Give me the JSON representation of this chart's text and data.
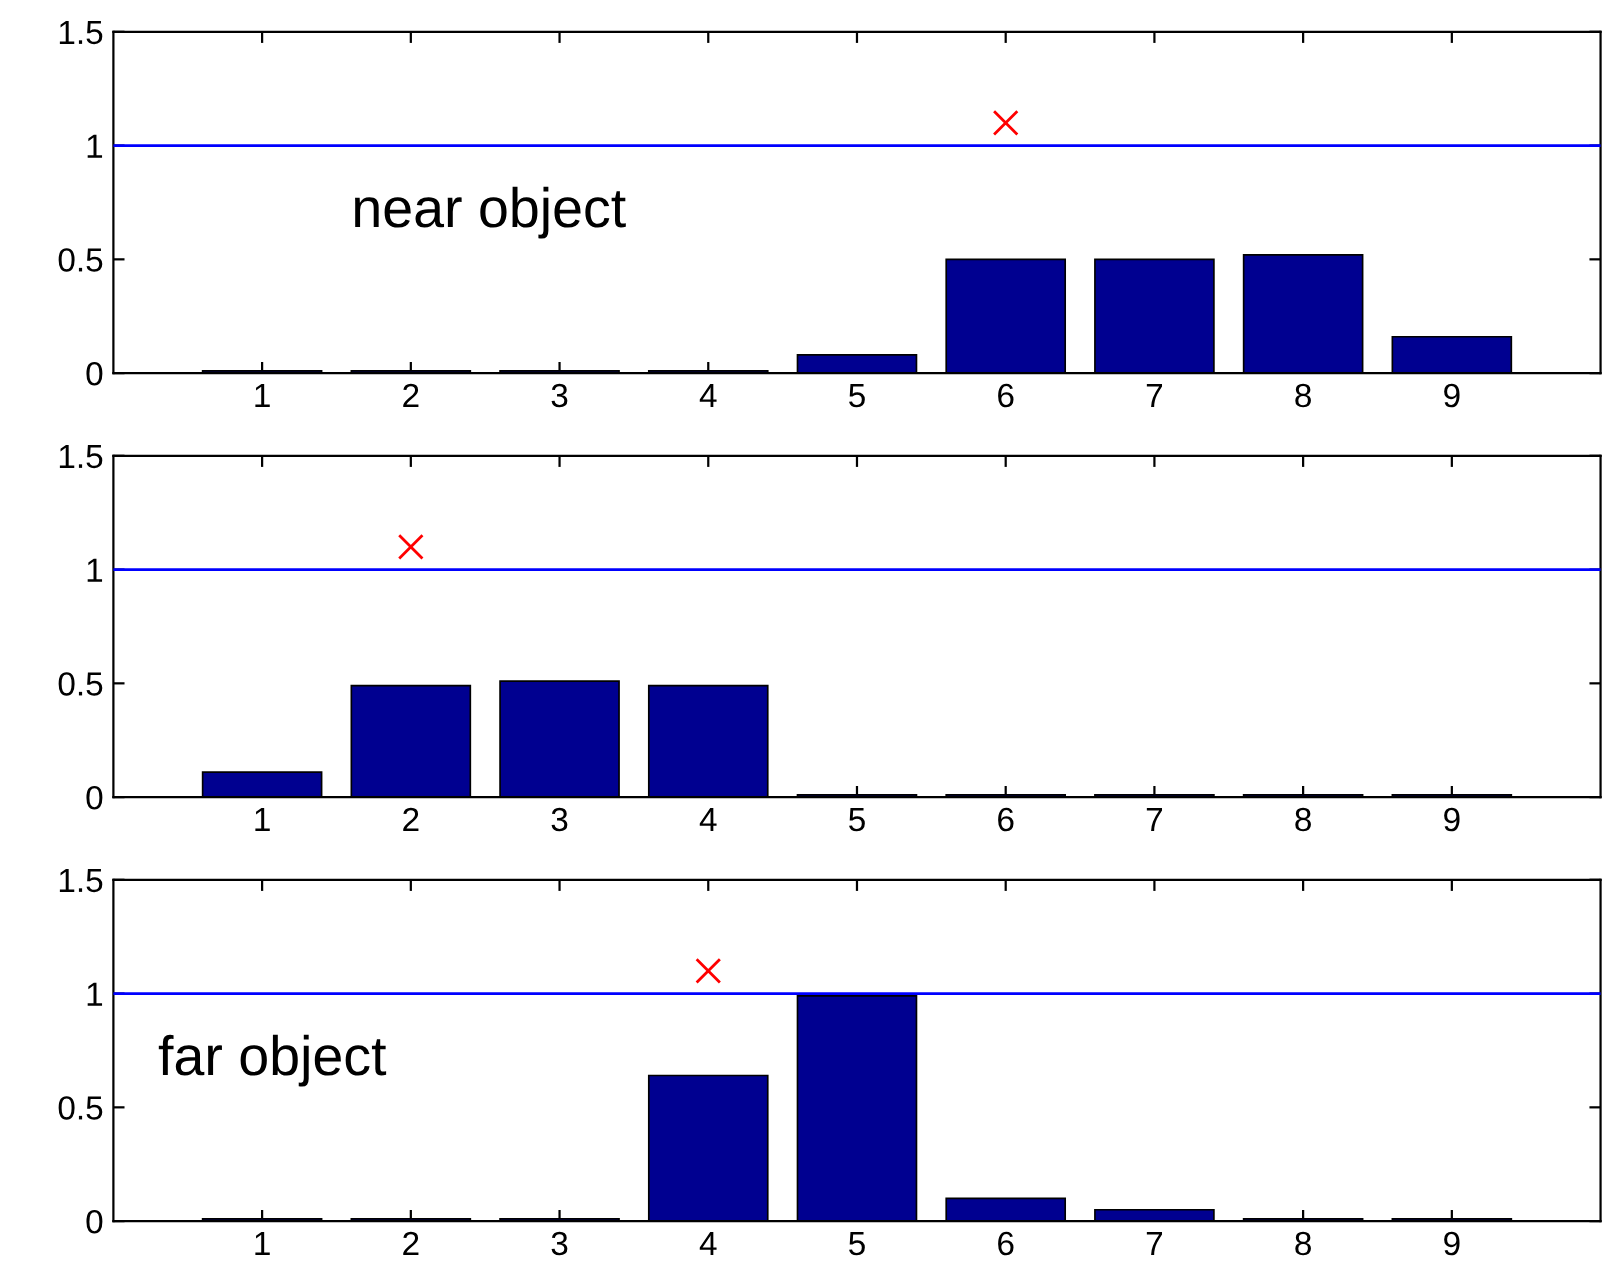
{
  "chart_data": [
    {
      "type": "bar",
      "x": [
        1,
        2,
        3,
        4,
        5,
        6,
        7,
        8,
        9
      ],
      "xlim": [
        0,
        10
      ],
      "xticks": [
        1,
        2,
        3,
        4,
        5,
        6,
        7,
        8,
        9
      ],
      "ylim": [
        0,
        1.5
      ],
      "yticks": [
        0,
        0.5,
        1,
        1.5
      ],
      "annotations": [
        "near object"
      ],
      "ref_lines": [
        {
          "axis": "y",
          "value": 1,
          "color": "#0000ff"
        }
      ],
      "series": [
        {
          "color": "#000090",
          "values": [
            0.01,
            0.01,
            0.01,
            0.01,
            0.08,
            0.5,
            0.5,
            0.52,
            0.16
          ]
        },
        {
          "type": "scatter",
          "color": "#ff0000",
          "marker": "cross",
          "x": [
            6
          ],
          "values": [
            1.1
          ]
        }
      ]
    },
    {
      "type": "bar",
      "x": [
        1,
        2,
        3,
        4,
        5,
        6,
        7,
        8,
        9
      ],
      "xlim": [
        0,
        10
      ],
      "xticks": [
        1,
        2,
        3,
        4,
        5,
        6,
        7,
        8,
        9
      ],
      "ylim": [
        0,
        1.5
      ],
      "yticks": [
        0,
        0.5,
        1,
        1.5
      ],
      "ref_lines": [
        {
          "axis": "y",
          "value": 1,
          "color": "#0000ff"
        }
      ],
      "series": [
        {
          "color": "#000090",
          "values": [
            0.11,
            0.49,
            0.51,
            0.49,
            0.01,
            0.01,
            0.01,
            0.01,
            0.01
          ]
        },
        {
          "type": "scatter",
          "color": "#ff0000",
          "marker": "cross",
          "x": [
            2
          ],
          "values": [
            1.1
          ]
        }
      ]
    },
    {
      "type": "bar",
      "x": [
        1,
        2,
        3,
        4,
        5,
        6,
        7,
        8,
        9
      ],
      "xlim": [
        0,
        10
      ],
      "xticks": [
        1,
        2,
        3,
        4,
        5,
        6,
        7,
        8,
        9
      ],
      "ylim": [
        0,
        1.5
      ],
      "yticks": [
        0,
        0.5,
        1,
        1.5
      ],
      "annotations": [
        "far object"
      ],
      "ref_lines": [
        {
          "axis": "y",
          "value": 1,
          "color": "#0000ff"
        }
      ],
      "series": [
        {
          "color": "#000090",
          "values": [
            0.01,
            0.01,
            0.01,
            0.64,
            0.99,
            0.1,
            0.05,
            0.01,
            0.01
          ]
        },
        {
          "type": "scatter",
          "color": "#ff0000",
          "marker": "cross",
          "x": [
            4
          ],
          "values": [
            1.1
          ]
        }
      ]
    }
  ]
}
